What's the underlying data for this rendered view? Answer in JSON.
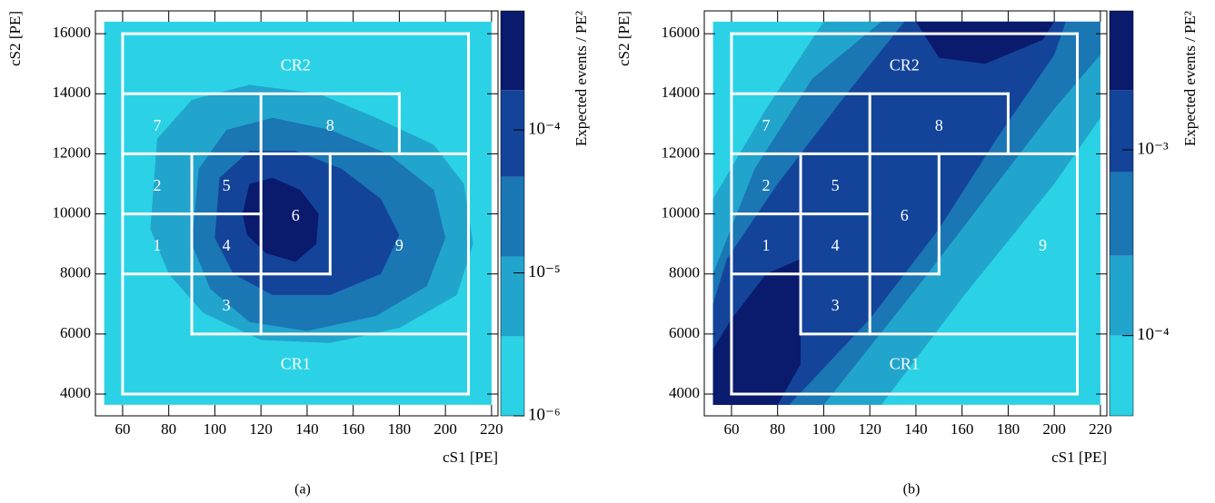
{
  "chart_data": [
    {
      "type": "contour",
      "caption": "(a)",
      "xlabel": "cS1  [PE]",
      "ylabel": "cS2  [PE]",
      "zlabel": "Expected events / PE²",
      "xlim": [
        48.2,
        222.8
      ],
      "ylim": [
        3275,
        16760
      ],
      "xticks": [
        60,
        80,
        100,
        120,
        140,
        160,
        180,
        200,
        220
      ],
      "yticks": [
        4000,
        6000,
        8000,
        10000,
        12000,
        14000,
        16000
      ],
      "zlim": [
        1e-06,
        0.00068
      ],
      "zlog": true,
      "zticks": [
        {
          "value": 1e-06,
          "label": "10⁻⁶"
        },
        {
          "value": 1e-05,
          "label": "10⁻⁵"
        },
        {
          "value": 0.0001,
          "label": "10⁻⁴"
        }
      ],
      "contours": [
        {
          "level": 1e-06,
          "color": "#2bd2e6",
          "x": [
            52,
            220,
            220,
            52
          ],
          "y": [
            3640,
            3640,
            16400,
            16400
          ]
        },
        {
          "level": 3.6e-06,
          "color": "#22a5cd",
          "x": [
            72,
            75,
            90,
            115,
            145,
            170,
            195,
            208,
            212,
            205,
            180,
            150,
            120,
            95,
            80
          ],
          "y": [
            9500,
            12500,
            13800,
            14300,
            14000,
            13200,
            12300,
            11000,
            9000,
            7300,
            6200,
            5700,
            5800,
            6700,
            8000
          ]
        },
        {
          "level": 1.3e-05,
          "color": "#1b76b4",
          "x": [
            90,
            93,
            105,
            125,
            150,
            175,
            195,
            200,
            192,
            170,
            140,
            115,
            98
          ],
          "y": [
            9000,
            11500,
            12800,
            13200,
            12800,
            12000,
            10800,
            9200,
            7600,
            6600,
            6100,
            6400,
            7500
          ]
        },
        {
          "level": 4.7e-05,
          "color": "#13449a",
          "x": [
            100,
            102,
            115,
            135,
            155,
            172,
            180,
            172,
            150,
            125,
            108
          ],
          "y": [
            9200,
            11200,
            12100,
            12100,
            11500,
            10500,
            9300,
            8000,
            7300,
            7300,
            8000
          ]
        },
        {
          "level": 0.00019,
          "color": "#0a1a6c",
          "x": [
            112,
            115,
            125,
            137,
            145,
            144,
            135,
            122,
            114
          ],
          "y": [
            10000,
            11000,
            11200,
            10800,
            10000,
            9000,
            8400,
            8700,
            9300
          ]
        }
      ],
      "boxes": [
        {
          "x": [
            60,
            210
          ],
          "y": [
            4000,
            4000
          ]
        },
        {
          "x": [
            60,
            210
          ],
          "y": [
            16000,
            16000
          ]
        },
        {
          "x": [
            60,
            60
          ],
          "y": [
            4000,
            16000
          ]
        },
        {
          "x": [
            210,
            210
          ],
          "y": [
            4000,
            16000
          ]
        },
        {
          "x": [
            60,
            180
          ],
          "y": [
            14000,
            14000
          ]
        },
        {
          "x": [
            180,
            180
          ],
          "y": [
            12000,
            14000
          ]
        },
        {
          "x": [
            120,
            120
          ],
          "y": [
            6000,
            14000
          ]
        },
        {
          "x": [
            60,
            210
          ],
          "y": [
            12000,
            12000
          ]
        },
        {
          "x": [
            90,
            90
          ],
          "y": [
            6000,
            12000
          ]
        },
        {
          "x": [
            60,
            120
          ],
          "y": [
            10000,
            10000
          ]
        },
        {
          "x": [
            150,
            150
          ],
          "y": [
            8000,
            12000
          ]
        },
        {
          "x": [
            60,
            150
          ],
          "y": [
            8000,
            8000
          ]
        },
        {
          "x": [
            90,
            210
          ],
          "y": [
            6000,
            6000
          ]
        }
      ],
      "labels": [
        {
          "text": "CR2",
          "x": 135,
          "y": 14900
        },
        {
          "text": "7",
          "x": 75,
          "y": 12900
        },
        {
          "text": "8",
          "x": 150,
          "y": 12900
        },
        {
          "text": "2",
          "x": 75,
          "y": 10900
        },
        {
          "text": "5",
          "x": 105,
          "y": 10900
        },
        {
          "text": "6",
          "x": 135,
          "y": 9900
        },
        {
          "text": "9",
          "x": 180,
          "y": 8900
        },
        {
          "text": "1",
          "x": 75,
          "y": 8900
        },
        {
          "text": "4",
          "x": 105,
          "y": 8900
        },
        {
          "text": "3",
          "x": 105,
          "y": 6900
        },
        {
          "text": "CR1",
          "x": 135,
          "y": 4950
        }
      ]
    },
    {
      "type": "contour",
      "caption": "(b)",
      "xlabel": "cS1  [PE]",
      "ylabel": "cS2  [PE]",
      "zlabel": "Expected events / PE²",
      "xlim": [
        48.2,
        222.8
      ],
      "ylim": [
        3275,
        16760
      ],
      "xticks": [
        60,
        80,
        100,
        120,
        140,
        160,
        180,
        200,
        220
      ],
      "yticks": [
        4000,
        6000,
        8000,
        10000,
        12000,
        14000,
        16000
      ],
      "zlim": [
        3.7e-05,
        0.0056
      ],
      "zlog": true,
      "zticks": [
        {
          "value": 0.0001,
          "label": "10⁻⁴"
        },
        {
          "value": 0.001,
          "label": "10⁻³"
        }
      ],
      "contours": [
        {
          "level": 3.7e-05,
          "color": "#2bd2e6",
          "x": [
            52,
            220,
            220,
            52
          ],
          "y": [
            3640,
            3640,
            16400,
            16400
          ]
        },
        {
          "level": 0.0001,
          "color": "#22a5cd",
          "x": [
            52,
            125,
            160,
            200,
            220,
            220,
            100,
            75,
            52
          ],
          "y": [
            3640,
            3640,
            7200,
            11000,
            13200,
            16400,
            16400,
            13500,
            10500
          ]
        },
        {
          "level": 0.00027,
          "color": "#1b76b4",
          "x": [
            52,
            100,
            140,
            175,
            200,
            220,
            220,
            125,
            95,
            70,
            52
          ],
          "y": [
            3640,
            3640,
            7500,
            11000,
            13500,
            15300,
            16400,
            16400,
            14500,
            11500,
            8000
          ]
        },
        {
          "level": 0.00076,
          "color": "#13449a",
          "x": [
            52,
            85,
            120,
            150,
            175,
            200,
            205,
            135,
            110,
            80,
            58,
            52
          ],
          "y": [
            3640,
            3640,
            6500,
            9500,
            12500,
            15300,
            16400,
            16400,
            14000,
            11000,
            8500,
            7000
          ]
        },
        {
          "level": 0.0021,
          "color": "#0a1a6c",
          "x": [
            52,
            80,
            90,
            90,
            75,
            60,
            52
          ],
          "y": [
            3640,
            3640,
            5000,
            8500,
            8000,
            6500,
            5500
          ]
        },
        {
          "level": 0.0021,
          "color": "#0a1a6c",
          "x": [
            140,
            150,
            170,
            195,
            200
          ],
          "y": [
            16400,
            15200,
            15000,
            15800,
            16400
          ]
        }
      ],
      "boxes": [
        {
          "x": [
            60,
            210
          ],
          "y": [
            4000,
            4000
          ]
        },
        {
          "x": [
            60,
            210
          ],
          "y": [
            16000,
            16000
          ]
        },
        {
          "x": [
            60,
            60
          ],
          "y": [
            4000,
            16000
          ]
        },
        {
          "x": [
            210,
            210
          ],
          "y": [
            4000,
            16000
          ]
        },
        {
          "x": [
            60,
            180
          ],
          "y": [
            14000,
            14000
          ]
        },
        {
          "x": [
            180,
            180
          ],
          "y": [
            12000,
            14000
          ]
        },
        {
          "x": [
            120,
            120
          ],
          "y": [
            6000,
            14000
          ]
        },
        {
          "x": [
            60,
            210
          ],
          "y": [
            12000,
            12000
          ]
        },
        {
          "x": [
            90,
            90
          ],
          "y": [
            6000,
            12000
          ]
        },
        {
          "x": [
            60,
            120
          ],
          "y": [
            10000,
            10000
          ]
        },
        {
          "x": [
            150,
            150
          ],
          "y": [
            8000,
            12000
          ]
        },
        {
          "x": [
            60,
            150
          ],
          "y": [
            8000,
            8000
          ]
        },
        {
          "x": [
            90,
            210
          ],
          "y": [
            6000,
            6000
          ]
        }
      ],
      "labels": [
        {
          "text": "CR2",
          "x": 135,
          "y": 14900
        },
        {
          "text": "7",
          "x": 75,
          "y": 12900
        },
        {
          "text": "8",
          "x": 150,
          "y": 12900
        },
        {
          "text": "2",
          "x": 75,
          "y": 10900
        },
        {
          "text": "5",
          "x": 105,
          "y": 10900
        },
        {
          "text": "6",
          "x": 135,
          "y": 9900
        },
        {
          "text": "9",
          "x": 195,
          "y": 8900
        },
        {
          "text": "1",
          "x": 75,
          "y": 8900
        },
        {
          "text": "4",
          "x": 105,
          "y": 8900
        },
        {
          "text": "3",
          "x": 105,
          "y": 6900
        },
        {
          "text": "CR1",
          "x": 135,
          "y": 4950
        }
      ]
    }
  ]
}
